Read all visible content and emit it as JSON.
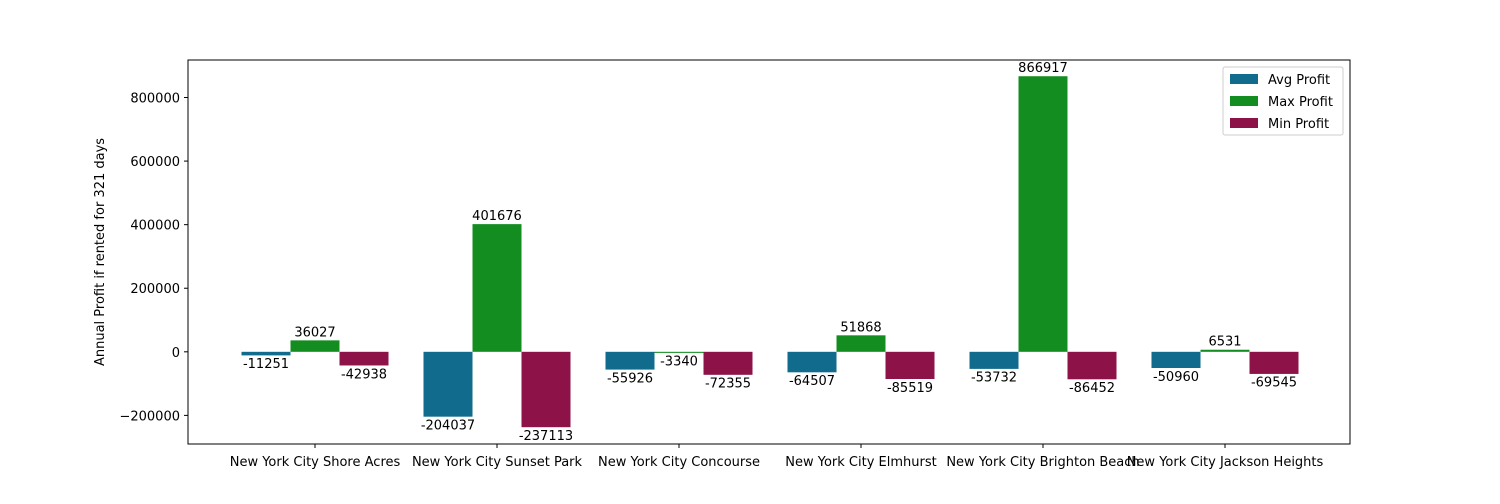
{
  "chart_data": {
    "type": "bar",
    "title": "",
    "xlabel": "",
    "ylabel": "Annual Profit if rented for 321 days",
    "ylim": [
      -290000,
      918000
    ],
    "yticks": [
      -200000,
      0,
      200000,
      400000,
      600000,
      800000
    ],
    "ytick_labels": [
      "−200000",
      "0",
      "200000",
      "400000",
      "600000",
      "800000"
    ],
    "grid": false,
    "legend_position": "top-right",
    "categories": [
      "New York City Shore Acres",
      "New York City Sunset Park",
      "New York City Concourse",
      "New York City Elmhurst",
      "New York City Brighton Beach",
      "New York City Jackson Heights"
    ],
    "series": [
      {
        "name": "Avg Profit",
        "color": "#116b8c",
        "values": [
          -11251,
          -204037,
          -55926,
          -64507,
          -53732,
          -50960
        ],
        "labels": [
          "-11251",
          "-204037",
          "-55926",
          "-64507",
          "-53732",
          "-50960"
        ]
      },
      {
        "name": "Max Profit",
        "color": "#138c20",
        "values": [
          36027,
          401676,
          -3340,
          51868,
          866917,
          6531
        ],
        "labels": [
          "36027",
          "401676",
          "-3340",
          "51868",
          "866917",
          "6531"
        ]
      },
      {
        "name": "Min Profit",
        "color": "#8c1248",
        "values": [
          -42938,
          -237113,
          -72355,
          -85519,
          -86452,
          -69545
        ],
        "labels": [
          "-42938",
          "-237113",
          "-72355",
          "-85519",
          "-86452",
          "-69545"
        ]
      }
    ]
  }
}
